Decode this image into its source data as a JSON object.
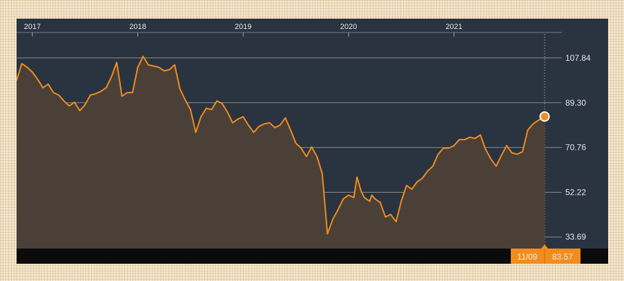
{
  "colors": {
    "panel": "#2a3340",
    "line": "#f28c1e",
    "area": "#4a4038",
    "grid": "#8d8c84",
    "bottom_bar": "#0b0b0b",
    "label_bg": "#f28c1e"
  },
  "marker": {
    "date": "11/09",
    "value": "83.57"
  },
  "chart_data": {
    "type": "area",
    "title": "",
    "xlabel": "",
    "ylabel": "",
    "grid": true,
    "legend": "none",
    "y_axis_position": "right",
    "x_tick_labels": [
      "2017",
      "2018",
      "2019",
      "2020",
      "2021"
    ],
    "y_tick_labels": [
      "107.84",
      "89.30",
      "70.76",
      "52.22",
      "33.69"
    ],
    "y_ticks": [
      107.84,
      89.3,
      70.76,
      52.22,
      33.69
    ],
    "xlim": [
      2016.85,
      2021.86
    ],
    "ylim": [
      28.9,
      118.4
    ],
    "series": [
      {
        "x": [
          2016.85,
          2016.9,
          2016.95,
          2017.0,
          2017.05,
          2017.1,
          2017.15,
          2017.2,
          2017.25,
          2017.3,
          2017.35,
          2017.4,
          2017.45,
          2017.5,
          2017.55,
          2017.6,
          2017.65,
          2017.7,
          2017.75,
          2017.8,
          2017.85,
          2017.9,
          2017.95,
          2018.0,
          2018.05,
          2018.1,
          2018.15,
          2018.2,
          2018.25,
          2018.3,
          2018.35,
          2018.4,
          2018.45,
          2018.5,
          2018.55,
          2018.6,
          2018.65,
          2018.7,
          2018.75,
          2018.8,
          2018.85,
          2018.9,
          2018.95,
          2019.0,
          2019.05,
          2019.1,
          2019.15,
          2019.2,
          2019.25,
          2019.3,
          2019.35,
          2019.4,
          2019.45,
          2019.5,
          2019.55,
          2019.6,
          2019.65,
          2019.7,
          2019.75,
          2019.8,
          2019.85,
          2019.9,
          2019.95,
          2020.0,
          2020.05,
          2020.08,
          2020.12,
          2020.15,
          2020.2,
          2020.22,
          2020.25,
          2020.3,
          2020.35,
          2020.4,
          2020.45,
          2020.5,
          2020.55,
          2020.6,
          2020.65,
          2020.7,
          2020.75,
          2020.8,
          2020.85,
          2020.9,
          2020.95,
          2021.0,
          2021.05,
          2021.1,
          2021.15,
          2021.2,
          2021.25,
          2021.3,
          2021.35,
          2021.4,
          2021.45,
          2021.5,
          2021.55,
          2021.6,
          2021.65,
          2021.7,
          2021.75,
          2021.8,
          2021.86
        ],
        "values": [
          98.5,
          105.5,
          104.0,
          102.0,
          99.0,
          95.5,
          97.0,
          93.5,
          92.5,
          90.0,
          88.0,
          89.5,
          86.0,
          88.5,
          92.5,
          93.0,
          94.0,
          95.5,
          100.0,
          106.0,
          92.0,
          93.5,
          93.5,
          104.0,
          108.5,
          105.0,
          104.5,
          104.0,
          102.5,
          103.0,
          105.0,
          95.0,
          90.5,
          86.5,
          77.0,
          83.5,
          87.0,
          86.5,
          90.0,
          89.0,
          85.5,
          81.0,
          82.5,
          83.5,
          80.0,
          77.0,
          79.5,
          80.5,
          81.0,
          79.0,
          80.0,
          83.0,
          78.0,
          72.5,
          70.5,
          67.0,
          71.0,
          67.0,
          60.0,
          35.0,
          41.0,
          45.0,
          49.5,
          51.0,
          50.0,
          58.5,
          52.5,
          50.0,
          48.5,
          51.0,
          49.5,
          48.0,
          42.0,
          43.0,
          40.0,
          48.5,
          55.0,
          53.5,
          56.5,
          58.0,
          61.0,
          63.0,
          68.0,
          70.5,
          70.5,
          71.5,
          74.0,
          74.0,
          75.0,
          74.5,
          76.0,
          70.0,
          66.0,
          63.0,
          67.5,
          71.5,
          68.5,
          68.0,
          69.0,
          78.0,
          80.5,
          82.0,
          83.57
        ]
      }
    ]
  }
}
